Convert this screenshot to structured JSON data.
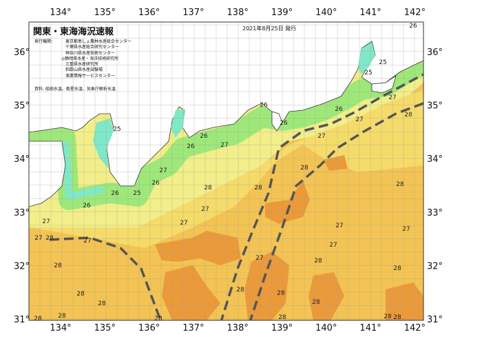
{
  "header": {
    "title": "関東・東海海況速報",
    "date": "2021年8月25日 発行",
    "issuer_label": "発行機関：",
    "issuers": [
      "東京都島しょ農林水産総合センター",
      "千葉県水産総合研究センター",
      "神奈川県水産技術センター",
      "◎静岡県水産・海洋技術研究所",
      "三重県水産研究所",
      "和歌山県水産試験場",
      "漁業情報サービスセンター"
    ],
    "source": "資料: 船舶水温、衛星水温、気象庁解析水温"
  },
  "axes": {
    "longitude_labels": [
      "134°",
      "135°",
      "136°",
      "137°",
      "138°",
      "139°",
      "140°",
      "141°",
      "142°"
    ],
    "latitude_labels": [
      "36°",
      "35°",
      "34°",
      "33°",
      "32°",
      "31°"
    ]
  },
  "colors": {
    "land": "#ffffff",
    "t25": "#7fe8c8",
    "t26": "#9ee87a",
    "t27": "#f2ee8a",
    "t28": "#f3c453",
    "t29": "#eb9a3a",
    "kuroshio": "#555555"
  },
  "isotherm_labels": [
    "25",
    "26",
    "26",
    "27",
    "26",
    "26",
    "26",
    "27",
    "27",
    "27",
    "28",
    "26",
    "25",
    "25",
    "26",
    "27",
    "26",
    "25",
    "26",
    "27",
    "27",
    "28",
    "27",
    "27",
    "27",
    "28",
    "28",
    "28",
    "28",
    "27",
    "27",
    "28",
    "28",
    "28",
    "28",
    "28",
    "28",
    "28",
    "28",
    "28",
    "28",
    "28",
    "28",
    "28",
    "28",
    "27",
    "27"
  ]
}
